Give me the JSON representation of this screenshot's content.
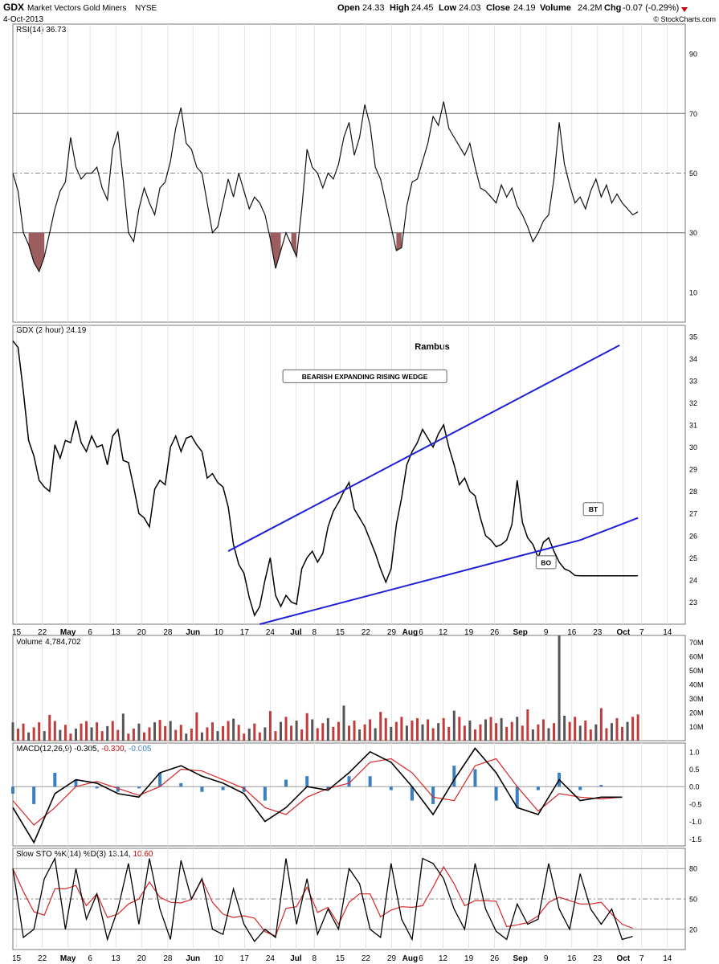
{
  "header": {
    "symbol": "GDX",
    "name": "Market Vectors Gold Miners",
    "exchange": "NYSE",
    "date": "4-Oct-2013",
    "open_label": "Open",
    "open": "24.33",
    "high_label": "High",
    "high": "24.45",
    "low_label": "Low",
    "low": "24.03",
    "close_label": "Close",
    "close": "24.19",
    "volume_label": "Volume",
    "volume": "24.2M",
    "chg_label": "Chg",
    "chg": "-0.07 (-0.29%)",
    "watermark": "© StockCharts.com"
  },
  "x_axis": {
    "ticks": [
      {
        "label": "15",
        "i": 0.7
      },
      {
        "label": "22",
        "i": 5.6
      },
      {
        "label": "May",
        "i": 10.5,
        "bold": true
      },
      {
        "label": "6",
        "i": 14.7
      },
      {
        "label": "13",
        "i": 19.6
      },
      {
        "label": "20",
        "i": 24.5
      },
      {
        "label": "28",
        "i": 29.5
      },
      {
        "label": "Jun",
        "i": 34.3,
        "bold": true
      },
      {
        "label": "10",
        "i": 39.2
      },
      {
        "label": "17",
        "i": 44.1
      },
      {
        "label": "24",
        "i": 49
      },
      {
        "label": "Jul",
        "i": 53.9,
        "bold": true
      },
      {
        "label": "8",
        "i": 57.4
      },
      {
        "label": "15",
        "i": 62.3
      },
      {
        "label": "22",
        "i": 67.2
      },
      {
        "label": "29",
        "i": 72.1
      },
      {
        "label": "Aug",
        "i": 75.6,
        "bold": true
      },
      {
        "label": "6",
        "i": 77.7
      },
      {
        "label": "12",
        "i": 81.9
      },
      {
        "label": "19",
        "i": 86.8
      },
      {
        "label": "26",
        "i": 91.7
      },
      {
        "label": "Sep",
        "i": 96.6,
        "bold": true
      },
      {
        "label": "9",
        "i": 101.5
      },
      {
        "label": "16",
        "i": 106.4
      },
      {
        "label": "23",
        "i": 111.3
      },
      {
        "label": "Oct",
        "i": 116.2,
        "bold": true
      },
      {
        "label": "7",
        "i": 119.7
      },
      {
        "label": "14",
        "i": 124.6
      }
    ]
  },
  "chart_data": [
    {
      "panel": "RSI",
      "type": "line",
      "label": "RSI(14) 36.73",
      "ylim": [
        0,
        100
      ],
      "yticks": [
        90,
        70,
        50,
        30,
        10
      ],
      "levels": [
        30,
        50,
        70
      ],
      "x": [
        0,
        1,
        2,
        3,
        4,
        5,
        6,
        7,
        8,
        9,
        10,
        11,
        12,
        13,
        14,
        15,
        16,
        17,
        18,
        19,
        20,
        21,
        22,
        23,
        24,
        25,
        26,
        27,
        28,
        29,
        30,
        31,
        32,
        33,
        34,
        35,
        36,
        37,
        38,
        39,
        40,
        41,
        42,
        43,
        44,
        45,
        46,
        47,
        48,
        49,
        50,
        51,
        52,
        53,
        54,
        55,
        56,
        57,
        58,
        59,
        60,
        61,
        62,
        63,
        64,
        65,
        66,
        67,
        68,
        69,
        70,
        71,
        72,
        73,
        74,
        75,
        76,
        77,
        78,
        79,
        80,
        81,
        82,
        83,
        84,
        85,
        86,
        87,
        88,
        89,
        90,
        91,
        92,
        93,
        94,
        95,
        96,
        97,
        98,
        99,
        100,
        101,
        102,
        103,
        104,
        105,
        106,
        107,
        108,
        109,
        110,
        111,
        112,
        113,
        114,
        115,
        116,
        117,
        118,
        119
      ],
      "values": [
        50,
        44,
        30,
        26,
        20,
        17,
        22,
        30,
        38,
        44,
        47,
        62,
        52,
        48,
        50,
        50,
        52,
        45,
        41,
        58,
        64,
        48,
        30,
        27,
        38,
        45,
        40,
        36,
        45,
        47,
        54,
        65,
        72,
        60,
        58,
        52,
        50,
        40,
        30,
        32,
        40,
        48,
        42,
        50,
        44,
        38,
        42,
        40,
        36,
        28,
        18,
        24,
        30,
        26,
        22,
        38,
        58,
        52,
        50,
        45,
        50,
        48,
        53,
        62,
        67,
        56,
        62,
        73,
        66,
        52,
        48,
        40,
        32,
        24,
        25,
        39,
        47,
        48,
        54,
        60,
        69,
        66,
        74,
        65,
        62,
        59,
        56,
        60,
        52,
        45,
        44,
        42,
        40,
        46,
        42,
        45,
        39,
        36,
        32,
        27,
        30,
        34,
        36,
        48,
        67,
        53,
        46,
        40,
        42,
        38,
        44,
        48,
        42,
        46,
        40,
        43,
        40,
        38,
        36,
        37
      ],
      "overbought": 70,
      "oversold": 30
    },
    {
      "panel": "Price",
      "type": "line",
      "label": "GDX (2 hour) 24.19",
      "annotation": "Rambus",
      "ylim": [
        22,
        35.5
      ],
      "yticks": [
        35,
        34,
        33,
        32,
        31,
        30,
        29,
        28,
        27,
        26,
        25,
        24,
        23
      ],
      "x": [
        0,
        1,
        2,
        3,
        4,
        5,
        6,
        7,
        8,
        9,
        10,
        11,
        12,
        13,
        14,
        15,
        16,
        17,
        18,
        19,
        20,
        21,
        22,
        23,
        24,
        25,
        26,
        27,
        28,
        29,
        30,
        31,
        32,
        33,
        34,
        35,
        36,
        37,
        38,
        39,
        40,
        41,
        42,
        43,
        44,
        45,
        46,
        47,
        48,
        49,
        50,
        51,
        52,
        53,
        54,
        55,
        56,
        57,
        58,
        59,
        60,
        61,
        62,
        63,
        64,
        65,
        66,
        67,
        68,
        69,
        70,
        71,
        72,
        73,
        74,
        75,
        76,
        77,
        78,
        79,
        80,
        81,
        82,
        83,
        84,
        85,
        86,
        87,
        88,
        89,
        90,
        91,
        92,
        93,
        94,
        95,
        96,
        97,
        98,
        99,
        100,
        101,
        102,
        103,
        104,
        105,
        106,
        107,
        108,
        109,
        110,
        111,
        112,
        113,
        114,
        115,
        116,
        117,
        118,
        119
      ],
      "values": [
        34.8,
        34.5,
        32.5,
        30.3,
        29.6,
        28.5,
        28.2,
        28,
        30.1,
        29.5,
        30.3,
        30.2,
        31.2,
        30.2,
        29.8,
        30.5,
        30,
        30.1,
        29.2,
        30.5,
        30.8,
        29.4,
        29.3,
        28.2,
        27,
        26.8,
        26.4,
        28.1,
        28.5,
        28.3,
        30,
        30.5,
        29.8,
        30.4,
        30.5,
        30.1,
        29.8,
        28.6,
        28.8,
        28.4,
        28.2,
        27.3,
        25.6,
        24.7,
        24.3,
        23.2,
        22.4,
        22.8,
        24,
        25,
        23.3,
        22.8,
        23.3,
        23,
        22.9,
        24.5,
        25,
        25.3,
        24.8,
        25.2,
        26.4,
        27.1,
        27.5,
        28,
        28.4,
        27.2,
        26.8,
        26.4,
        25.8,
        25.2,
        24.5,
        23.9,
        24.5,
        26.5,
        27.7,
        29.2,
        29.8,
        30.2,
        30.8,
        30.4,
        30,
        30.6,
        31,
        30,
        29.2,
        28.3,
        28.6,
        28,
        27.8,
        26.8,
        26,
        25.8,
        25.5,
        25.6,
        25.8,
        26.5,
        28.5,
        26.6,
        25.9,
        25.6,
        25,
        25.7,
        25.9,
        25.3,
        24.8,
        24.5,
        24.4,
        24.2,
        24.19,
        24.19,
        24.19,
        24.19,
        24.19,
        24.19,
        24.19,
        24.19,
        24.19,
        24.19,
        24.19,
        24.19
      ],
      "trendlines": [
        {
          "name": "wedge-upper",
          "x": [
            41,
            115.5
          ],
          "y": [
            25.3,
            34.6
          ]
        },
        {
          "name": "wedge-lower",
          "x": [
            47,
            108
          ],
          "y": [
            22.0,
            25.8
          ]
        },
        {
          "name": "wedge-lower-extension",
          "x": [
            108,
            119
          ],
          "y": [
            25.8,
            26.8
          ]
        }
      ],
      "callouts": [
        {
          "name": "wedge-callout",
          "text": "BEARISH EXPANDING RISING WEDGE",
          "x": 67,
          "y": 33.2
        },
        {
          "name": "bt-callout",
          "text": "BT",
          "x": 110.5,
          "y": 27.2
        },
        {
          "name": "bo-callout",
          "text": "BO",
          "x": 101.5,
          "y": 24.8
        }
      ]
    },
    {
      "panel": "Volume",
      "type": "bar",
      "label": "Volume 4,784,702",
      "ylim": [
        0,
        75
      ],
      "yticks": [
        70,
        60,
        50,
        40,
        30,
        20,
        10
      ],
      "ytick_suffix": "M",
      "spike": {
        "x": 104,
        "value": 75
      }
    },
    {
      "panel": "MACD",
      "type": "line",
      "label_prefix": "MACD(12,26,9) ",
      "label_macd": "-0.305",
      "label_signal": "-0.300",
      "label_hist": "-0.005",
      "ylim": [
        -1.7,
        1.25
      ],
      "yticks": [
        1.0,
        0.5,
        0.0,
        -0.5,
        -1.0,
        -1.5
      ],
      "tick_labels": [
        "1.0",
        "0.5",
        "0.0",
        "-0.5",
        "-1.0",
        "-1.5"
      ],
      "x": [
        0,
        4,
        8,
        12,
        16,
        20,
        24,
        28,
        32,
        36,
        40,
        44,
        48,
        52,
        56,
        60,
        64,
        68,
        72,
        76,
        80,
        84,
        88,
        92,
        96,
        100,
        104,
        108,
        112,
        116
      ],
      "macd": [
        -0.6,
        -1.6,
        -0.2,
        0.2,
        0.1,
        -0.2,
        -0.3,
        0.4,
        0.6,
        0.3,
        0.1,
        -0.2,
        -1.0,
        -0.6,
        0.0,
        -0.1,
        0.4,
        1.0,
        0.7,
        0.0,
        -0.8,
        0.2,
        1.1,
        0.4,
        -0.6,
        -0.8,
        0.2,
        -0.4,
        -0.3,
        -0.3
      ],
      "signal": [
        -0.4,
        -1.1,
        -0.6,
        0.0,
        0.15,
        -0.05,
        -0.25,
        0.0,
        0.5,
        0.45,
        0.2,
        -0.05,
        -0.6,
        -0.8,
        -0.3,
        -0.05,
        0.1,
        0.7,
        0.8,
        0.4,
        -0.3,
        -0.4,
        0.6,
        0.8,
        0.0,
        -0.7,
        -0.2,
        -0.3,
        -0.35,
        -0.3
      ]
    },
    {
      "panel": "Stochastics",
      "type": "line",
      "label_prefix": "Slow STO %K(14) %D(3) ",
      "label_k": "13.14",
      "label_d": "10.60",
      "ylim": [
        0,
        100
      ],
      "yticks": [
        80,
        50,
        20
      ],
      "levels": [
        20,
        50,
        80
      ],
      "x": [
        0,
        2,
        4,
        6,
        8,
        10,
        12,
        14,
        16,
        18,
        20,
        22,
        24,
        26,
        28,
        30,
        32,
        34,
        36,
        38,
        40,
        42,
        44,
        46,
        48,
        50,
        52,
        54,
        56,
        58,
        60,
        62,
        64,
        66,
        68,
        70,
        72,
        74,
        76,
        78,
        80,
        82,
        84,
        86,
        88,
        90,
        92,
        94,
        96,
        98,
        100,
        102,
        104,
        106,
        108,
        110,
        112,
        114,
        116,
        118
      ],
      "k": [
        80,
        12,
        20,
        70,
        90,
        20,
        80,
        30,
        55,
        10,
        40,
        85,
        25,
        90,
        40,
        10,
        88,
        50,
        70,
        20,
        15,
        60,
        25,
        8,
        20,
        12,
        90,
        25,
        70,
        15,
        40,
        20,
        80,
        65,
        20,
        12,
        85,
        30,
        10,
        90,
        85,
        70,
        40,
        20,
        85,
        40,
        18,
        10,
        45,
        25,
        30,
        85,
        40,
        20,
        75,
        40,
        25,
        40,
        10,
        13
      ]
    }
  ]
}
